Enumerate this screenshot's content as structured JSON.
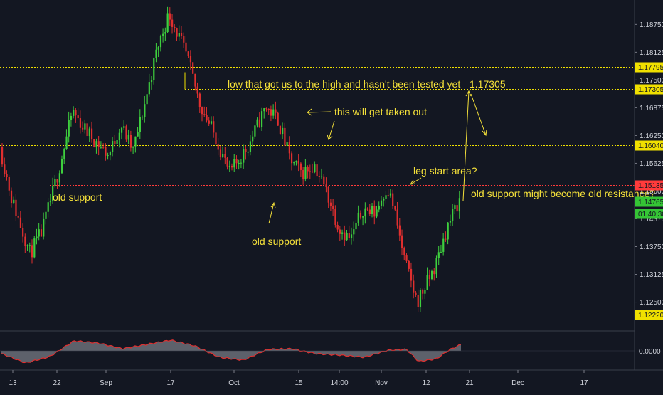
{
  "chart_data": {
    "type": "candlestick",
    "title": "",
    "xlabel": "",
    "ylabel": "",
    "ylim": [
      1.119,
      1.193
    ],
    "y_ticks": [
      "1.18750",
      "1.18125",
      "1.17500",
      "1.16875",
      "1.16250",
      "1.15625",
      "1.15000",
      "1.14375",
      "1.13750",
      "1.13125",
      "1.12500"
    ],
    "x_ticks": [
      "13",
      "22",
      "Sep",
      "17",
      "Oct",
      "15",
      "14:00",
      "Nov",
      "12",
      "21",
      "Dec",
      "17"
    ],
    "grid": false,
    "price_path": [
      [
        0,
        1.16
      ],
      [
        0.02,
        1.148
      ],
      [
        0.05,
        1.136
      ],
      [
        0.07,
        1.141
      ],
      [
        0.1,
        1.156
      ],
      [
        0.12,
        1.168
      ],
      [
        0.14,
        1.164
      ],
      [
        0.18,
        1.158
      ],
      [
        0.2,
        1.165
      ],
      [
        0.22,
        1.159
      ],
      [
        0.24,
        1.17
      ],
      [
        0.26,
        1.182
      ],
      [
        0.28,
        1.19
      ],
      [
        0.31,
        1.18
      ],
      [
        0.33,
        1.17
      ],
      [
        0.36,
        1.161
      ],
      [
        0.38,
        1.154
      ],
      [
        0.41,
        1.16
      ],
      [
        0.44,
        1.169
      ],
      [
        0.46,
        1.166
      ],
      [
        0.48,
        1.157
      ],
      [
        0.5,
        1.154
      ],
      [
        0.52,
        1.156
      ],
      [
        0.54,
        1.15
      ],
      [
        0.56,
        1.142
      ],
      [
        0.58,
        1.139
      ],
      [
        0.6,
        1.146
      ],
      [
        0.62,
        1.145
      ],
      [
        0.64,
        1.151
      ],
      [
        0.65,
        1.147
      ],
      [
        0.67,
        1.134
      ],
      [
        0.69,
        1.125
      ],
      [
        0.72,
        1.133
      ],
      [
        0.74,
        1.142
      ],
      [
        0.76,
        1.148
      ]
    ],
    "oscillator": {
      "zero_label": "0.0000",
      "path": [
        [
          0,
          -0.2
        ],
        [
          0.04,
          -0.85
        ],
        [
          0.08,
          -0.4
        ],
        [
          0.12,
          0.7
        ],
        [
          0.16,
          0.55
        ],
        [
          0.2,
          0.15
        ],
        [
          0.24,
          0.45
        ],
        [
          0.28,
          0.75
        ],
        [
          0.32,
          0.35
        ],
        [
          0.36,
          -0.45
        ],
        [
          0.4,
          -0.65
        ],
        [
          0.44,
          0.1
        ],
        [
          0.48,
          0.15
        ],
        [
          0.52,
          -0.2
        ],
        [
          0.56,
          -0.3
        ],
        [
          0.6,
          -0.45
        ],
        [
          0.64,
          0.05
        ],
        [
          0.67,
          0.1
        ],
        [
          0.69,
          -0.75
        ],
        [
          0.72,
          -0.55
        ],
        [
          0.74,
          0.05
        ],
        [
          0.76,
          0.45
        ]
      ]
    },
    "levels": [
      {
        "price": "1.17795",
        "value": 1.17795,
        "style": "dotted",
        "color": "#f0e000",
        "label_bg": "#f0e000"
      },
      {
        "price": "1.17305",
        "value": 1.17305,
        "style": "dotted",
        "color": "#f0e000",
        "label_bg": "#f0e000"
      },
      {
        "price": "1.16040",
        "value": 1.1604,
        "style": "dotted",
        "color": "#f0e000",
        "label_bg": "#f0e000"
      },
      {
        "price": "1.15135",
        "value": 1.15135,
        "style": "dotted",
        "color": "#ff3b3b",
        "label_bg": "#ff3b3b"
      },
      {
        "price": "1.12220",
        "value": 1.1222,
        "style": "dotted",
        "color": "#f0e000",
        "label_bg": "#f0e000"
      }
    ],
    "current_price": {
      "price": "1.14765",
      "countdown": "01:40:30",
      "color": "#35c535"
    },
    "annotations": [
      {
        "text": "low that got us to the high and hasn't been tested yet"
      },
      {
        "text": "1.17305"
      },
      {
        "text": "this will get taken out"
      },
      {
        "text": "old support"
      },
      {
        "text": "old support"
      },
      {
        "text": "leg start area?"
      },
      {
        "text": "old support might become old resistance?"
      }
    ],
    "colors": {
      "up": "#3ecf3e",
      "down": "#e02f2f",
      "background": "#131722",
      "annotation": "#f5e13a"
    }
  }
}
